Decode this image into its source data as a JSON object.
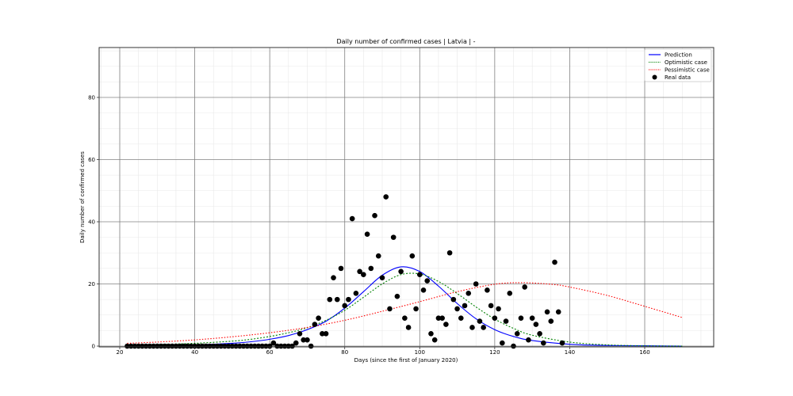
{
  "chart_data": {
    "type": "line",
    "title": "Daily number of confirmed cases | Latvia | -",
    "xlabel": "Days (since the first of January 2020)",
    "ylabel": "Daily number of confirmed cases",
    "xlim": [
      15,
      178
    ],
    "ylim": [
      0,
      96
    ],
    "x_ticks": [
      20,
      40,
      60,
      80,
      100,
      120,
      140,
      160
    ],
    "y_ticks": [
      0,
      20,
      40,
      60,
      80
    ],
    "grid": {
      "major": true,
      "minor": true
    },
    "legend_position": "upper right",
    "legend": [
      {
        "label": "Prediction",
        "style": "solid",
        "color": "#0000ff"
      },
      {
        "label": "Optimistic case",
        "style": "dotted",
        "color": "#008000"
      },
      {
        "label": "Pessimistic case",
        "style": "dotted",
        "color": "#ff0000"
      },
      {
        "label": "Real data",
        "style": "marker",
        "color": "#000000"
      }
    ],
    "series": [
      {
        "name": "Prediction",
        "type": "line",
        "color": "#0000ff",
        "dash": "",
        "x": [
          22,
          30,
          40,
          50,
          55,
          60,
          65,
          70,
          75,
          80,
          85,
          90,
          95,
          100,
          105,
          110,
          115,
          120,
          125,
          130,
          140,
          150,
          160,
          170
        ],
        "y": [
          0.1,
          0.2,
          0.4,
          0.9,
          1.4,
          2.2,
          3.4,
          5.3,
          8.0,
          12.2,
          17.5,
          22.8,
          25.5,
          24.0,
          19.3,
          13.7,
          8.8,
          5.3,
          3.1,
          1.8,
          0.6,
          0.2,
          0.1,
          0.0
        ]
      },
      {
        "name": "Optimistic case",
        "type": "line",
        "color": "#008000",
        "dash": "2,2",
        "x": [
          22,
          30,
          40,
          50,
          55,
          60,
          65,
          70,
          75,
          80,
          85,
          90,
          95,
          100,
          105,
          110,
          115,
          120,
          125,
          130,
          140,
          150,
          160,
          170
        ],
        "y": [
          0.3,
          0.5,
          0.9,
          1.6,
          2.2,
          3.1,
          4.3,
          5.9,
          8.3,
          11.5,
          15.7,
          20.0,
          23.0,
          23.2,
          20.8,
          16.9,
          12.6,
          8.7,
          5.7,
          3.5,
          1.3,
          0.4,
          0.1,
          0.0
        ]
      },
      {
        "name": "Pessimistic case",
        "type": "line",
        "color": "#ff0000",
        "dash": "1.5,2",
        "x": [
          22,
          30,
          40,
          50,
          60,
          70,
          80,
          90,
          100,
          110,
          120,
          127,
          135,
          140,
          150,
          160,
          170
        ],
        "y": [
          0.9,
          1.3,
          2.0,
          3.0,
          4.3,
          6.0,
          8.3,
          11.2,
          14.3,
          17.5,
          19.9,
          20.4,
          19.9,
          19.0,
          16.3,
          12.8,
          9.2
        ]
      },
      {
        "name": "Real data",
        "type": "scatter",
        "color": "#000000",
        "x": [
          22,
          23,
          24,
          25,
          26,
          27,
          28,
          29,
          30,
          31,
          32,
          33,
          34,
          35,
          36,
          37,
          38,
          39,
          40,
          41,
          42,
          43,
          44,
          45,
          46,
          47,
          48,
          49,
          50,
          51,
          52,
          53,
          54,
          55,
          56,
          57,
          58,
          59,
          60,
          61,
          62,
          63,
          64,
          65,
          66,
          67,
          68,
          69,
          70,
          71,
          72,
          73,
          74,
          75,
          76,
          77,
          78,
          79,
          80,
          81,
          82,
          83,
          84,
          85,
          86,
          87,
          88,
          89,
          90,
          91,
          92,
          93,
          94,
          95,
          96,
          97,
          98,
          99,
          100,
          101,
          102,
          103,
          104,
          105,
          106,
          107,
          108,
          109,
          110,
          111,
          112,
          113,
          114,
          115,
          116,
          117,
          118,
          119,
          120,
          121,
          122,
          123,
          124,
          125,
          126,
          127,
          128,
          129,
          130,
          131,
          132,
          133,
          134,
          135,
          136,
          137,
          138
        ],
        "y": [
          0,
          0,
          0,
          0,
          0,
          0,
          0,
          0,
          0,
          0,
          0,
          0,
          0,
          0,
          0,
          0,
          0,
          0,
          0,
          0,
          0,
          0,
          0,
          0,
          0,
          0,
          0,
          0,
          0,
          0,
          0,
          0,
          0,
          0,
          0,
          0,
          0,
          0,
          0,
          1,
          0,
          0,
          0,
          0,
          0,
          1,
          4,
          2,
          2,
          0,
          7,
          9,
          4,
          4,
          15,
          22,
          15,
          25,
          13,
          15,
          41,
          17,
          24,
          23,
          36,
          25,
          42,
          29,
          22,
          48,
          12,
          35,
          16,
          24,
          9,
          6,
          29,
          12,
          23,
          18,
          21,
          4,
          2,
          9,
          9,
          7,
          30,
          15,
          12,
          9,
          13,
          17,
          6,
          20,
          8,
          6,
          18,
          13,
          9,
          12,
          1,
          8,
          17,
          0,
          4,
          9,
          19,
          2,
          9,
          7,
          4,
          1,
          11,
          8,
          27,
          11,
          1
        ]
      }
    ]
  },
  "figure": {
    "title": "Daily number of confirmed cases | Latvia | -",
    "xlabel": "Days (since the first of January 2020)",
    "ylabel": "Daily number of confirmed cases",
    "legend_labels": [
      "Prediction",
      "Optimistic case",
      "Pessimistic case",
      "Real data"
    ]
  }
}
